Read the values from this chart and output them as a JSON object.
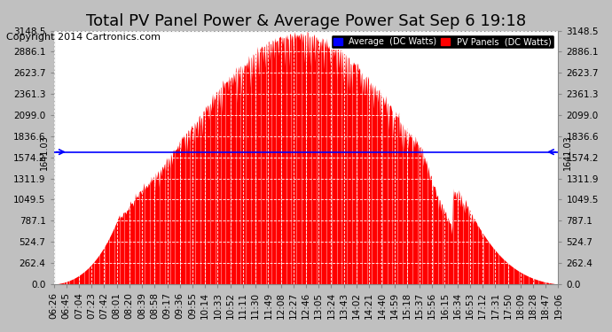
{
  "title": "Total PV Panel Power & Average Power Sat Sep 6 19:18",
  "copyright": "Copyright 2014 Cartronics.com",
  "background_color": "#c0c0c0",
  "plot_bg_color": "#ffffff",
  "grid_color": "#ffffff",
  "average_value": 1641.03,
  "average_color": "#0000ff",
  "pv_fill_color": "#ff0000",
  "pv_line_color": "#ff0000",
  "ylim": [
    0,
    3148.5
  ],
  "yticks": [
    0.0,
    262.4,
    524.7,
    787.1,
    1049.5,
    1311.9,
    1574.2,
    1836.6,
    2099.0,
    2361.3,
    2623.7,
    2886.1,
    3148.5
  ],
  "ytick_labels": [
    "0.0",
    "262.4",
    "524.7",
    "787.1",
    "1049.5",
    "1311.9",
    "1574.2",
    "1836.6",
    "2099.0",
    "2361.3",
    "2623.7",
    "2886.1",
    "3148.5"
  ],
  "xtick_labels": [
    "06:26",
    "06:45",
    "07:04",
    "07:23",
    "07:42",
    "08:01",
    "08:20",
    "08:39",
    "08:58",
    "09:17",
    "09:36",
    "09:55",
    "10:14",
    "10:33",
    "10:52",
    "11:11",
    "11:30",
    "11:49",
    "12:08",
    "12:27",
    "12:46",
    "13:05",
    "13:24",
    "13:43",
    "14:02",
    "14:21",
    "14:40",
    "14:59",
    "15:18",
    "15:37",
    "15:56",
    "16:15",
    "16:34",
    "16:53",
    "17:12",
    "17:31",
    "17:50",
    "18:09",
    "18:28",
    "18:47",
    "19:06"
  ],
  "legend_average_label": "Average  (DC Watts)",
  "legend_pv_label": "PV Panels  (DC Watts)",
  "legend_avg_bg": "#0000ff",
  "legend_pv_bg": "#ff0000",
  "left_label": "1641.03",
  "right_label": "1641.03",
  "title_fontsize": 13,
  "tick_fontsize": 7.5,
  "copyright_fontsize": 8
}
